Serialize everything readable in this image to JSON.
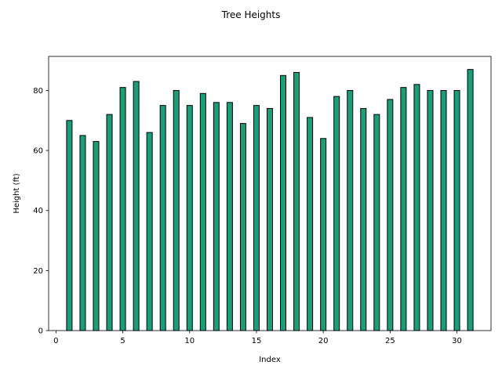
{
  "chart_data": {
    "type": "bar",
    "title": "Tree Heights",
    "xlabel": "Index",
    "ylabel": "Height (ft)",
    "x": [
      1,
      2,
      3,
      4,
      5,
      6,
      7,
      8,
      9,
      10,
      11,
      12,
      13,
      14,
      15,
      16,
      17,
      18,
      19,
      20,
      21,
      22,
      23,
      24,
      25,
      26,
      27,
      28,
      29,
      30,
      31
    ],
    "values": [
      70,
      65,
      63,
      72,
      81,
      83,
      66,
      75,
      80,
      75,
      79,
      76,
      76,
      69,
      75,
      74,
      85,
      86,
      71,
      64,
      78,
      80,
      74,
      72,
      77,
      81,
      82,
      80,
      80,
      80,
      87
    ],
    "xlim": [
      -0.55,
      32.55
    ],
    "ylim": [
      0,
      91.35
    ],
    "xticks": [
      0,
      5,
      10,
      15,
      20,
      25,
      30
    ],
    "yticks": [
      0,
      20,
      40,
      60,
      80
    ],
    "bar_color": "#1b9e77",
    "edge_color": "#000000",
    "grid": false,
    "legend": "none"
  }
}
